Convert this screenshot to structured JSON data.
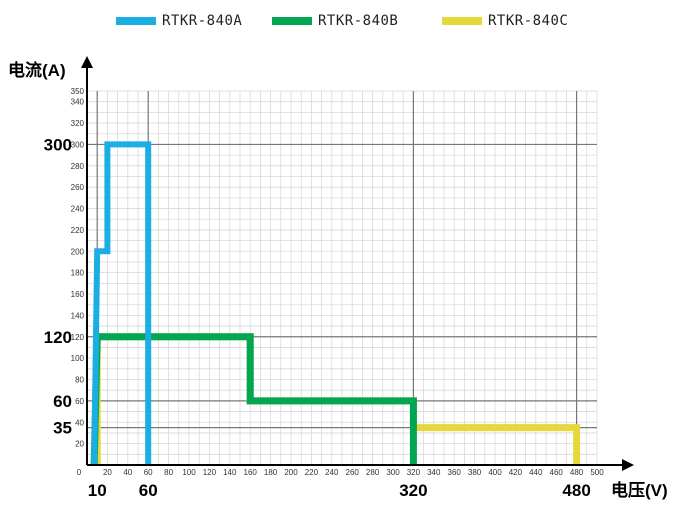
{
  "chart_data": {
    "type": "line",
    "xlabel": "电压(V)",
    "ylabel": "电流(A)",
    "xlim": [
      0,
      500
    ],
    "ylim": [
      0,
      350
    ],
    "x_major_ticks": [
      10,
      60,
      320,
      480
    ],
    "y_major_ticks": [
      35,
      60,
      120,
      300
    ],
    "x_minor_ticks": [
      0,
      20,
      40,
      60,
      80,
      100,
      120,
      140,
      160,
      180,
      200,
      220,
      240,
      260,
      280,
      300,
      320,
      340,
      360,
      380,
      400,
      420,
      440,
      460,
      480,
      500
    ],
    "y_minor_ticks": [
      20,
      40,
      60,
      80,
      100,
      120,
      140,
      160,
      180,
      200,
      220,
      240,
      260,
      280,
      300,
      320,
      340
    ],
    "x_tick_labels": [
      "0",
      "20",
      "40",
      "60",
      "80",
      "100",
      "120",
      "140",
      "160",
      "180",
      "200",
      "220",
      "240",
      "260",
      "280",
      "300",
      "320",
      "340",
      "360",
      "380",
      "400",
      "420",
      "440",
      "460",
      "480",
      "500"
    ],
    "y_tick_labels": [
      "20",
      "40",
      "60",
      "80",
      "100",
      "120",
      "140",
      "160",
      "180",
      "200",
      "220",
      "240",
      "260",
      "280",
      "300",
      "320",
      "340",
      "350"
    ],
    "grid": true,
    "legend_position": "top",
    "series": [
      {
        "name": "RTKR-840A",
        "color": "#1aaee5",
        "x": [
          7,
          10,
          10,
          20,
          20,
          60,
          60
        ],
        "y": [
          0,
          200,
          200,
          200,
          300,
          300,
          0
        ]
      },
      {
        "name": "RTKR-840B",
        "color": "#00a651",
        "x": [
          7,
          10,
          160,
          160,
          320,
          320
        ],
        "y": [
          0,
          120,
          120,
          60,
          60,
          0
        ]
      },
      {
        "name": "RTKR-840C",
        "color": "#e6d83a",
        "x": [
          10,
          10,
          160,
          160,
          320,
          320,
          480,
          480
        ],
        "y": [
          0,
          120,
          120,
          60,
          60,
          35,
          35,
          0
        ]
      }
    ]
  }
}
